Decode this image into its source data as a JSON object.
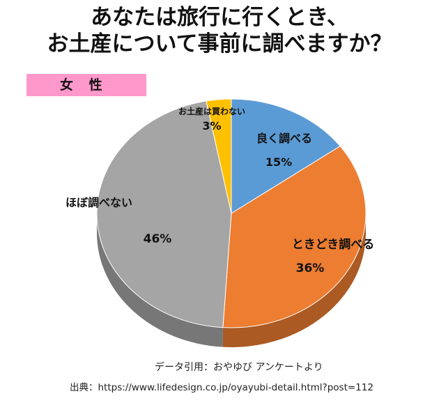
{
  "title": {
    "line1": "あなたは旅行に行くとき、",
    "line2": "お土産について事前に調べますか？"
  },
  "badge": "女 性",
  "chart_data": {
    "type": "pie",
    "title": "あなたは旅行に行くとき、お土産について事前に調べますか？",
    "subtitle": "女 性",
    "slices": [
      {
        "label": "良く調べる",
        "value": 15,
        "value_label": "15%",
        "color": "#5b9bd5"
      },
      {
        "label": "ときどき調べる",
        "value": 36,
        "value_label": "36%",
        "color": "#ed7d31"
      },
      {
        "label": "ほぼ調べない",
        "value": 46,
        "value_label": "46%",
        "color": "#a5a5a5"
      },
      {
        "label": "お土産は買わない",
        "value": 3,
        "value_label": "3%",
        "color": "#ffc000"
      }
    ]
  },
  "footer": {
    "source": "データ引用：おやゆび アンケートより",
    "credit": "出典：https://www.lifedesign.co.jp/oyayubi-detail.html?post=112"
  }
}
